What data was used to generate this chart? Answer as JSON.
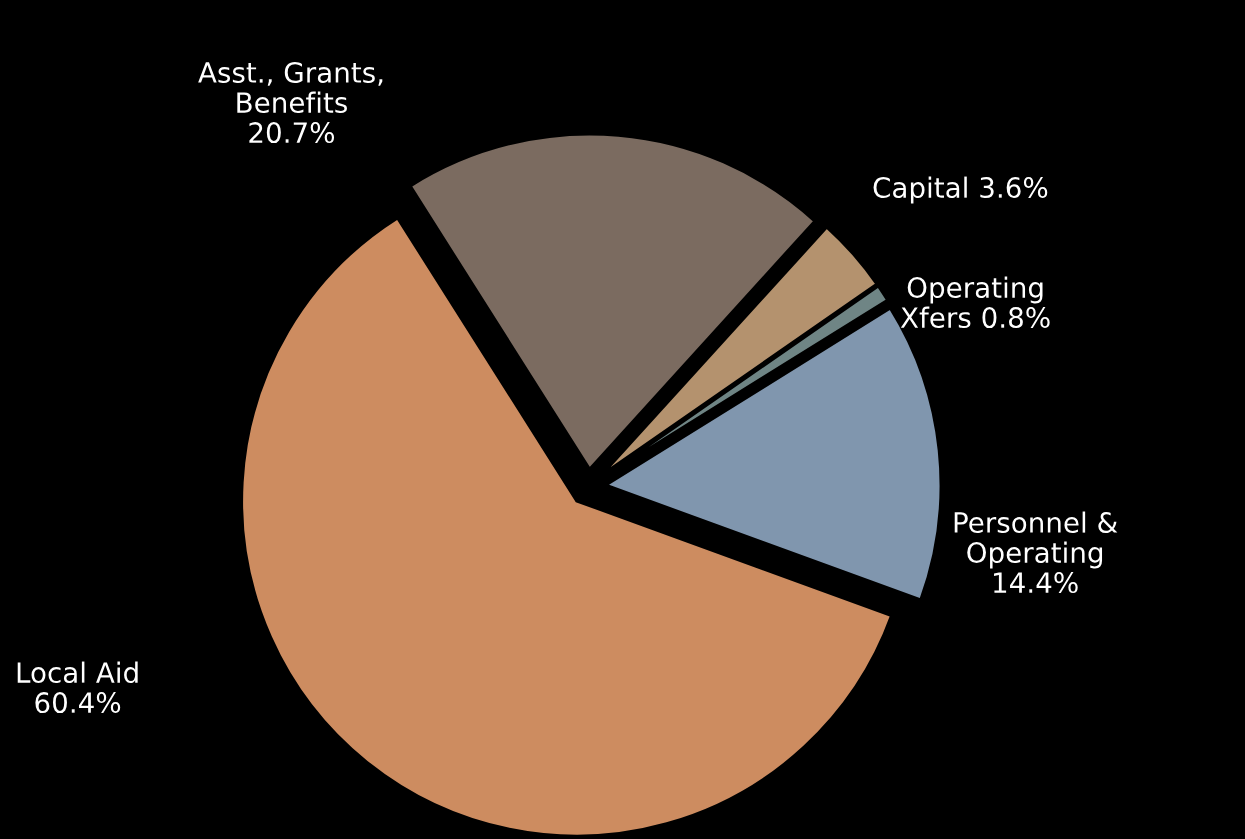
{
  "chart_data": {
    "type": "pie",
    "categories": [
      "Personnel &\nOperating",
      "Operating\nXfers",
      "Capital",
      "Asst., Grants,\nBenefits",
      "Local Aid"
    ],
    "values": [
      14.4,
      0.8,
      3.6,
      20.7,
      60.4
    ],
    "value_labels": [
      "14.4%",
      "0.8%",
      "3.6%",
      "20.7%",
      "60.4%"
    ],
    "colors": [
      "#8096ae",
      "#6f8585",
      "#b4926e",
      "#7b6b60",
      "#cd8c60"
    ],
    "legend": false
  }
}
